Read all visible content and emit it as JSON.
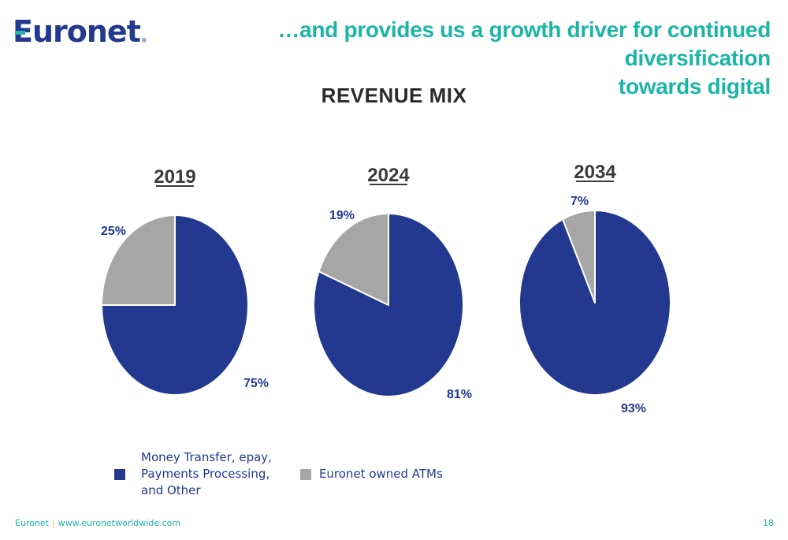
{
  "brand": {
    "logo_text": "uronet",
    "logo_first_letter": "E",
    "registered_mark": "®",
    "colors": {
      "primary_blue": "#22398f",
      "teal": "#1bb5a6",
      "gray": "#a6a6a6",
      "separator_orange": "#f3b45e"
    }
  },
  "header": {
    "headline_line1": "…and provides us a growth driver for continued diversification",
    "headline_line2": "towards digital"
  },
  "chart_data": {
    "type": "pie",
    "title": "REVENUE MIX",
    "legend_placement": "bottom",
    "series_names": [
      "Money Transfer, epay, Payments Processing, and Other",
      "Euronet owned ATMs"
    ],
    "series_colors": [
      "#22398f",
      "#a6a6a6"
    ],
    "charts": [
      {
        "label": "2019",
        "slices": [
          {
            "name": "Money Transfer, epay, Payments Processing, and Other",
            "value": 75,
            "label": "75%"
          },
          {
            "name": "Euronet owned ATMs",
            "value": 25,
            "label": "25%"
          }
        ]
      },
      {
        "label": "2024",
        "slices": [
          {
            "name": "Money Transfer, epay, Payments Processing, and Other",
            "value": 81,
            "label": "81%"
          },
          {
            "name": "Euronet owned ATMs",
            "value": 19,
            "label": "19%"
          }
        ]
      },
      {
        "label": "2034",
        "slices": [
          {
            "name": "Money Transfer, epay, Payments Processing, and Other",
            "value": 93,
            "label": "93%"
          },
          {
            "name": "Euronet owned ATMs",
            "value": 7,
            "label": "7%"
          }
        ]
      }
    ]
  },
  "legend": {
    "items": [
      {
        "lines": [
          "Money Transfer, epay,",
          "Payments Processing,",
          "and Other"
        ],
        "color": "#22398f"
      },
      {
        "lines": [
          "Euronet owned ATMs"
        ],
        "color": "#a6a6a6"
      }
    ]
  },
  "footer": {
    "company": "Euronet",
    "separator": "|",
    "website": "www.euronetworldwide.com",
    "page_number": "18"
  }
}
